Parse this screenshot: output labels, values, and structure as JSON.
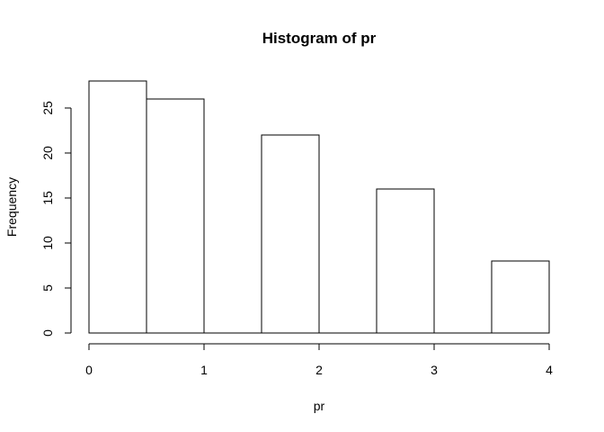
{
  "chart_data": {
    "type": "bar",
    "title": "Histogram of pr",
    "xlabel": "pr",
    "ylabel": "Frequency",
    "bins": [
      {
        "start": 0.0,
        "end": 0.5,
        "count": 28
      },
      {
        "start": 0.5,
        "end": 1.0,
        "count": 26
      },
      {
        "start": 1.0,
        "end": 1.5,
        "count": 0
      },
      {
        "start": 1.5,
        "end": 2.0,
        "count": 22
      },
      {
        "start": 2.0,
        "end": 2.5,
        "count": 0
      },
      {
        "start": 2.5,
        "end": 3.0,
        "count": 16
      },
      {
        "start": 3.0,
        "end": 3.5,
        "count": 0
      },
      {
        "start": 3.5,
        "end": 4.0,
        "count": 8
      }
    ],
    "xlim": [
      0,
      4
    ],
    "ylim": [
      0,
      28
    ],
    "x_ticks": [
      "0",
      "1",
      "2",
      "3",
      "4"
    ],
    "y_ticks": [
      "0",
      "5",
      "10",
      "15",
      "20",
      "25"
    ],
    "grid": false
  }
}
